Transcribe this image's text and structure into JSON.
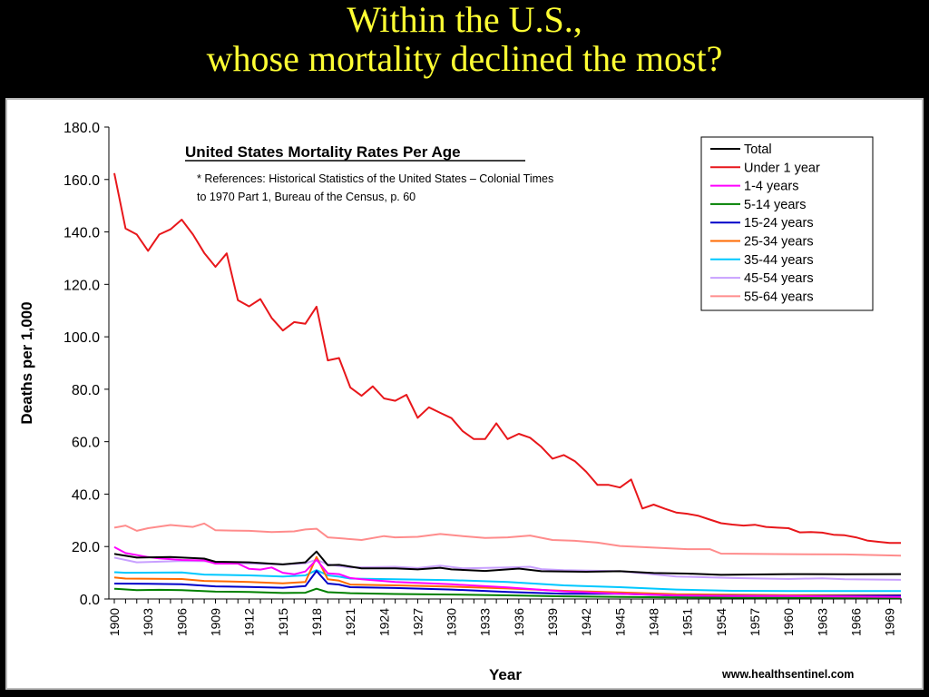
{
  "slide": {
    "title_line1": "Within the U.S.,",
    "title_line2": "whose mortality declined the most?"
  },
  "source": "www.healthsentinel.com",
  "chart_data": {
    "type": "line",
    "title": "United States Mortality Rates Per Age",
    "reference_line1": "* References: Historical Statistics of the United States – Colonial Times",
    "reference_line2": "to 1970 Part 1, Bureau of the Census, p. 60",
    "xlabel": "Year",
    "ylabel": "Deaths per 1,000",
    "ylim": [
      0,
      180
    ],
    "xlim": [
      1900,
      1970
    ],
    "yticks": [
      "0.0",
      "20.0",
      "40.0",
      "60.0",
      "80.0",
      "100.0",
      "120.0",
      "140.0",
      "160.0",
      "180.0"
    ],
    "xticks": [
      "1900",
      "1903",
      "1906",
      "1909",
      "1912",
      "1915",
      "1918",
      "1921",
      "1924",
      "1927",
      "1930",
      "1933",
      "1936",
      "1939",
      "1942",
      "1945",
      "1948",
      "1951",
      "1954",
      "1957",
      "1960",
      "1963",
      "1966",
      "1969"
    ],
    "grid": false,
    "legend_position": "top-right",
    "series": [
      {
        "name": "Total",
        "color": "#000000",
        "points": [
          [
            1900,
            17.2
          ],
          [
            1902,
            15.8
          ],
          [
            1905,
            16.0
          ],
          [
            1908,
            15.4
          ],
          [
            1909,
            14.2
          ],
          [
            1912,
            14.0
          ],
          [
            1915,
            13.2
          ],
          [
            1917,
            14.0
          ],
          [
            1918,
            18.1
          ],
          [
            1919,
            12.9
          ],
          [
            1920,
            13.0
          ],
          [
            1922,
            11.7
          ],
          [
            1925,
            11.7
          ],
          [
            1927,
            11.3
          ],
          [
            1929,
            11.9
          ],
          [
            1930,
            11.3
          ],
          [
            1933,
            10.7
          ],
          [
            1936,
            11.6
          ],
          [
            1938,
            10.6
          ],
          [
            1942,
            10.4
          ],
          [
            1945,
            10.6
          ],
          [
            1948,
            9.9
          ],
          [
            1951,
            9.7
          ],
          [
            1954,
            9.2
          ],
          [
            1960,
            9.5
          ],
          [
            1965,
            9.4
          ],
          [
            1970,
            9.5
          ]
        ]
      },
      {
        "name": "Under 1 year",
        "color": "#e8171b",
        "points": [
          [
            1900,
            162.4
          ],
          [
            1901,
            141.3
          ],
          [
            1902,
            139
          ],
          [
            1903,
            132.8
          ],
          [
            1904,
            139
          ],
          [
            1905,
            141
          ],
          [
            1906,
            144.7
          ],
          [
            1907,
            139
          ],
          [
            1908,
            132
          ],
          [
            1909,
            126.7
          ],
          [
            1910,
            131.8
          ],
          [
            1911,
            114
          ],
          [
            1912,
            111.6
          ],
          [
            1913,
            114.4
          ],
          [
            1914,
            107.2
          ],
          [
            1915,
            102.4
          ],
          [
            1916,
            105.6
          ],
          [
            1917,
            105
          ],
          [
            1918,
            111.5
          ],
          [
            1919,
            91
          ],
          [
            1920,
            91.9
          ],
          [
            1921,
            80.7
          ],
          [
            1922,
            77.5
          ],
          [
            1923,
            81.1
          ],
          [
            1924,
            76.5
          ],
          [
            1925,
            75.6
          ],
          [
            1926,
            77.9
          ],
          [
            1927,
            69.1
          ],
          [
            1928,
            73.1
          ],
          [
            1929,
            71
          ],
          [
            1930,
            69
          ],
          [
            1931,
            64
          ],
          [
            1932,
            61
          ],
          [
            1933,
            61
          ],
          [
            1934,
            67
          ],
          [
            1935,
            61
          ],
          [
            1936,
            63
          ],
          [
            1937,
            61.5
          ],
          [
            1938,
            58
          ],
          [
            1939,
            53.5
          ],
          [
            1940,
            54.9
          ],
          [
            1941,
            52.5
          ],
          [
            1942,
            48.5
          ],
          [
            1943,
            43.5
          ],
          [
            1944,
            43.5
          ],
          [
            1945,
            42.5
          ],
          [
            1946,
            45.6
          ],
          [
            1947,
            34.5
          ],
          [
            1948,
            36
          ],
          [
            1949,
            34.4
          ],
          [
            1950,
            33
          ],
          [
            1951,
            32.5
          ],
          [
            1952,
            31.7
          ],
          [
            1953,
            30.3
          ],
          [
            1954,
            28.9
          ],
          [
            1955,
            28.4
          ],
          [
            1956,
            28
          ],
          [
            1957,
            28.3
          ],
          [
            1958,
            27.5
          ],
          [
            1959,
            27.2
          ],
          [
            1960,
            27
          ],
          [
            1961,
            25.4
          ],
          [
            1962,
            25.5
          ],
          [
            1963,
            25.3
          ],
          [
            1964,
            24.5
          ],
          [
            1965,
            24.3
          ],
          [
            1966,
            23.5
          ],
          [
            1967,
            22.3
          ],
          [
            1968,
            21.8
          ],
          [
            1969,
            21.4
          ],
          [
            1970,
            21.4
          ]
        ]
      },
      {
        "name": "1-4 years",
        "color": "#ff00ff",
        "points": [
          [
            1900,
            19.8
          ],
          [
            1901,
            17.5
          ],
          [
            1903,
            16
          ],
          [
            1904,
            15.5
          ],
          [
            1906,
            14.9
          ],
          [
            1907,
            14.8
          ],
          [
            1908,
            14.7
          ],
          [
            1909,
            13.5
          ],
          [
            1911,
            13.5
          ],
          [
            1912,
            11.5
          ],
          [
            1913,
            11.2
          ],
          [
            1914,
            12
          ],
          [
            1915,
            10
          ],
          [
            1916,
            9.4
          ],
          [
            1917,
            10.5
          ],
          [
            1918,
            15
          ],
          [
            1919,
            9.8
          ],
          [
            1920,
            9.5
          ],
          [
            1921,
            8
          ],
          [
            1922,
            7.5
          ],
          [
            1925,
            6.5
          ],
          [
            1930,
            5.6
          ],
          [
            1935,
            4.4
          ],
          [
            1940,
            2.9
          ],
          [
            1945,
            2
          ],
          [
            1950,
            1.4
          ],
          [
            1955,
            1.1
          ],
          [
            1960,
            1.1
          ],
          [
            1970,
            0.8
          ]
        ]
      },
      {
        "name": "5-14 years",
        "color": "#008000",
        "points": [
          [
            1900,
            3.9
          ],
          [
            1902,
            3.4
          ],
          [
            1904,
            3.5
          ],
          [
            1906,
            3.4
          ],
          [
            1909,
            2.8
          ],
          [
            1912,
            2.7
          ],
          [
            1915,
            2.3
          ],
          [
            1917,
            2.4
          ],
          [
            1918,
            3.9
          ],
          [
            1919,
            2.6
          ],
          [
            1921,
            2.2
          ],
          [
            1925,
            1.9
          ],
          [
            1930,
            1.7
          ],
          [
            1935,
            1.4
          ],
          [
            1940,
            1.0
          ],
          [
            1945,
            0.8
          ],
          [
            1950,
            0.6
          ],
          [
            1960,
            0.5
          ],
          [
            1970,
            0.4
          ]
        ]
      },
      {
        "name": "15-24 years",
        "color": "#0000c8",
        "points": [
          [
            1900,
            5.9
          ],
          [
            1903,
            5.8
          ],
          [
            1906,
            5.6
          ],
          [
            1909,
            4.8
          ],
          [
            1912,
            4.6
          ],
          [
            1915,
            4.3
          ],
          [
            1917,
            4.9
          ],
          [
            1918,
            10.7
          ],
          [
            1919,
            5.9
          ],
          [
            1920,
            5.5
          ],
          [
            1921,
            4.5
          ],
          [
            1925,
            4.2
          ],
          [
            1930,
            3.6
          ],
          [
            1935,
            2.7
          ],
          [
            1940,
            2.0
          ],
          [
            1945,
            2.0
          ],
          [
            1950,
            1.3
          ],
          [
            1960,
            1.1
          ],
          [
            1970,
            1.3
          ]
        ]
      },
      {
        "name": "25-34 years",
        "color": "#ff6a00",
        "points": [
          [
            1900,
            8.2
          ],
          [
            1901,
            7.8
          ],
          [
            1906,
            7.6
          ],
          [
            1908,
            6.9
          ],
          [
            1912,
            6.5
          ],
          [
            1915,
            6.0
          ],
          [
            1917,
            6.5
          ],
          [
            1918,
            16.0
          ],
          [
            1919,
            7.5
          ],
          [
            1920,
            7.0
          ],
          [
            1921,
            5.5
          ],
          [
            1925,
            5.2
          ],
          [
            1930,
            4.7
          ],
          [
            1935,
            4.0
          ],
          [
            1940,
            3.1
          ],
          [
            1945,
            2.5
          ],
          [
            1950,
            1.8
          ],
          [
            1960,
            1.5
          ],
          [
            1970,
            1.5
          ]
        ]
      },
      {
        "name": "35-44 years",
        "color": "#00c8ff",
        "points": [
          [
            1900,
            10.2
          ],
          [
            1901,
            10.0
          ],
          [
            1906,
            10.1
          ],
          [
            1908,
            9.3
          ],
          [
            1912,
            9.0
          ],
          [
            1915,
            8.6
          ],
          [
            1917,
            9.0
          ],
          [
            1918,
            11.0
          ],
          [
            1919,
            9.0
          ],
          [
            1920,
            8.5
          ],
          [
            1921,
            7.8
          ],
          [
            1925,
            7.5
          ],
          [
            1930,
            7.2
          ],
          [
            1935,
            6.5
          ],
          [
            1940,
            5.2
          ],
          [
            1945,
            4.5
          ],
          [
            1950,
            3.6
          ],
          [
            1955,
            3.1
          ],
          [
            1960,
            3.0
          ],
          [
            1970,
            3.0
          ]
        ]
      },
      {
        "name": "45-54 years",
        "color": "#c8a0ff",
        "points": [
          [
            1900,
            15.8
          ],
          [
            1902,
            14.0
          ],
          [
            1903,
            14.1
          ],
          [
            1906,
            14.5
          ],
          [
            1908,
            14.4
          ],
          [
            1910,
            13.7
          ],
          [
            1912,
            13.5
          ],
          [
            1915,
            13.2
          ],
          [
            1917,
            13.6
          ],
          [
            1918,
            15.0
          ],
          [
            1919,
            13.2
          ],
          [
            1921,
            12.0
          ],
          [
            1925,
            12.3
          ],
          [
            1927,
            11.8
          ],
          [
            1929,
            12.7
          ],
          [
            1931,
            11.7
          ],
          [
            1935,
            12.0
          ],
          [
            1937,
            12.3
          ],
          [
            1938,
            11.4
          ],
          [
            1940,
            11.0
          ],
          [
            1945,
            10.6
          ],
          [
            1950,
            8.6
          ],
          [
            1955,
            8.0
          ],
          [
            1960,
            7.6
          ],
          [
            1963,
            7.9
          ],
          [
            1965,
            7.5
          ],
          [
            1970,
            7.3
          ]
        ]
      },
      {
        "name": "55-64 years",
        "color": "#ff8c8c",
        "points": [
          [
            1900,
            27.2
          ],
          [
            1901,
            28.0
          ],
          [
            1902,
            26.0
          ],
          [
            1903,
            27.0
          ],
          [
            1905,
            28.2
          ],
          [
            1907,
            27.5
          ],
          [
            1908,
            28.8
          ],
          [
            1909,
            26.2
          ],
          [
            1912,
            26.0
          ],
          [
            1914,
            25.5
          ],
          [
            1916,
            25.8
          ],
          [
            1917,
            26.5
          ],
          [
            1918,
            26.8
          ],
          [
            1919,
            23.5
          ],
          [
            1920,
            23.2
          ],
          [
            1922,
            22.5
          ],
          [
            1924,
            24.0
          ],
          [
            1925,
            23.5
          ],
          [
            1927,
            23.7
          ],
          [
            1929,
            24.8
          ],
          [
            1931,
            24.0
          ],
          [
            1933,
            23.3
          ],
          [
            1935,
            23.5
          ],
          [
            1937,
            24.2
          ],
          [
            1939,
            22.5
          ],
          [
            1941,
            22.2
          ],
          [
            1943,
            21.5
          ],
          [
            1945,
            20.2
          ],
          [
            1948,
            19.6
          ],
          [
            1951,
            19.0
          ],
          [
            1953,
            19.0
          ],
          [
            1954,
            17.3
          ],
          [
            1960,
            17.1
          ],
          [
            1965,
            17.0
          ],
          [
            1970,
            16.5
          ]
        ]
      }
    ]
  }
}
